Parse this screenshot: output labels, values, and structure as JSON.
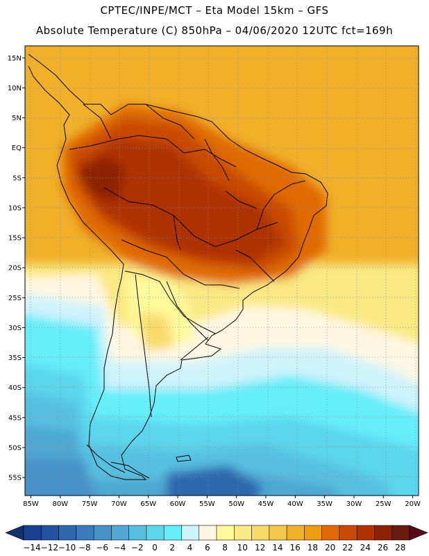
{
  "header": {
    "line1": "CPTEC/INPE/MCT –  Eta Model 15km – GFS",
    "line2": "Absolute Temperature (C) 850hPa – 04/06/2020 12UTC fct=169h"
  },
  "map": {
    "lon_range": [
      -86,
      -19
    ],
    "lat_range": [
      -58,
      17
    ],
    "lat_ticks": [
      {
        "value": 15,
        "label": "15N"
      },
      {
        "value": 10,
        "label": "10N"
      },
      {
        "value": 5,
        "label": "5N"
      },
      {
        "value": 0,
        "label": "EQ"
      },
      {
        "value": -5,
        "label": "5S"
      },
      {
        "value": -10,
        "label": "10S"
      },
      {
        "value": -15,
        "label": "15S"
      },
      {
        "value": -20,
        "label": "20S"
      },
      {
        "value": -25,
        "label": "25S"
      },
      {
        "value": -30,
        "label": "30S"
      },
      {
        "value": -35,
        "label": "35S"
      },
      {
        "value": -40,
        "label": "40S"
      },
      {
        "value": -45,
        "label": "45S"
      },
      {
        "value": -50,
        "label": "50S"
      },
      {
        "value": -55,
        "label": "55S"
      }
    ],
    "lon_ticks": [
      {
        "value": -85,
        "label": "85W"
      },
      {
        "value": -80,
        "label": "80W"
      },
      {
        "value": -75,
        "label": "75W"
      },
      {
        "value": -70,
        "label": "70W"
      },
      {
        "value": -65,
        "label": "65W"
      },
      {
        "value": -60,
        "label": "60W"
      },
      {
        "value": -55,
        "label": "55W"
      },
      {
        "value": -50,
        "label": "50W"
      },
      {
        "value": -45,
        "label": "45W"
      },
      {
        "value": -40,
        "label": "40W"
      },
      {
        "value": -35,
        "label": "35W"
      },
      {
        "value": -30,
        "label": "30W"
      },
      {
        "value": -25,
        "label": "25W"
      },
      {
        "value": -20,
        "label": "20W"
      }
    ]
  },
  "colorbar": {
    "labels": [
      "-14",
      "-12",
      "-10",
      "-8",
      "-6",
      "-4",
      "-2",
      "0",
      "2",
      "4",
      "6",
      "8",
      "10",
      "12",
      "14",
      "16",
      "18",
      "20",
      "22",
      "24",
      "26",
      "28"
    ],
    "colors": [
      "#1a3f8f",
      "#23539e",
      "#2f68ad",
      "#3a7cbc",
      "#4692c6",
      "#50a8d2",
      "#56bfe0",
      "#5bd6ec",
      "#66eefb",
      "#cff3fb",
      "#fef7e2",
      "#fdf99a",
      "#fbe983",
      "#f8d96a",
      "#f4c84f",
      "#f0b02a",
      "#ee9d10",
      "#e06a05",
      "#c84a03",
      "#ad3200",
      "#8d2106",
      "#6b1a10"
    ],
    "under_color": "#13306d",
    "over_color": "#5a0a1e"
  }
}
